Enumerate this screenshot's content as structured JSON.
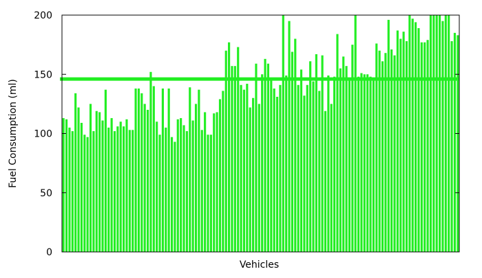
{
  "chart_data": {
    "type": "bar",
    "title": "",
    "xlabel": "Vehicles",
    "ylabel": "Fuel Consumption (ml)",
    "ylim": [
      0,
      200
    ],
    "yticks": [
      {
        "value": 0,
        "label": "0"
      },
      {
        "value": 50,
        "label": "50"
      },
      {
        "value": 100,
        "label": "100"
      },
      {
        "value": 150,
        "label": "150"
      },
      {
        "value": 200,
        "label": "200"
      }
    ],
    "grid": false,
    "legend": "none",
    "bar_color": "#22ee22",
    "reference_line": {
      "value": 146,
      "color": "#22ee22"
    },
    "values": [
      113,
      112,
      105,
      102,
      134,
      122,
      109,
      99,
      97,
      125,
      102,
      119,
      118,
      111,
      137,
      105,
      113,
      102,
      106,
      110,
      106,
      112,
      103,
      103,
      138,
      138,
      134,
      125,
      120,
      152,
      140,
      110,
      99,
      138,
      105,
      138,
      97,
      93,
      112,
      113,
      107,
      102,
      139,
      111,
      125,
      137,
      103,
      118,
      99,
      99,
      117,
      118,
      129,
      136,
      170,
      177,
      157,
      157,
      173,
      141,
      137,
      142,
      122,
      130,
      159,
      125,
      150,
      163,
      159,
      145,
      138,
      131,
      141,
      200,
      149,
      195,
      169,
      180,
      141,
      154,
      132,
      141,
      161,
      144,
      167,
      136,
      166,
      119,
      149,
      125,
      148,
      184,
      155,
      165,
      157,
      147,
      175,
      200,
      148,
      151,
      150,
      150,
      148,
      147,
      176,
      170,
      161,
      168,
      196,
      171,
      166,
      187,
      180,
      186,
      178,
      200,
      197,
      194,
      189,
      177,
      177,
      179,
      200,
      200,
      200,
      200,
      195,
      200,
      200,
      178,
      185,
      183
    ]
  }
}
